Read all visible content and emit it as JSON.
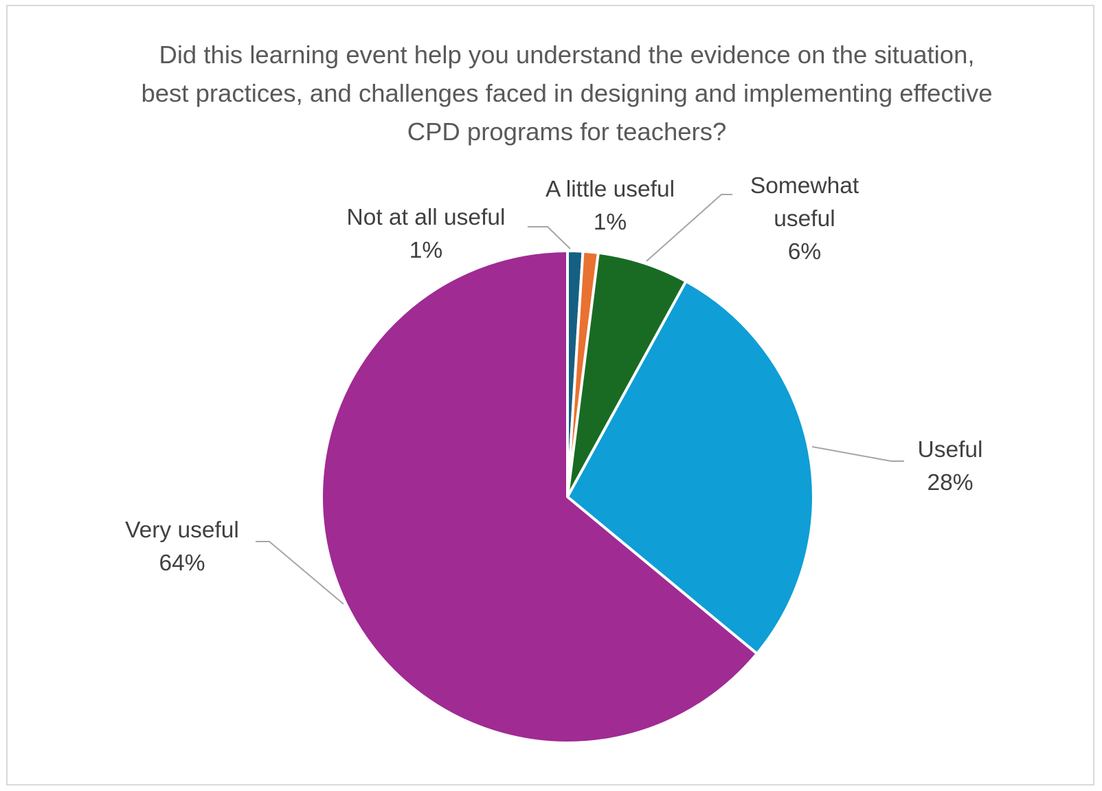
{
  "chart_data": {
    "type": "pie",
    "title": "Did this learning event help you understand the evidence on the situation, best practices, and challenges faced in designing and implementing effective CPD programs for teachers?",
    "start_angle_deg": 0,
    "direction": "clockwise",
    "slices": [
      {
        "label": "Not at all useful",
        "value": 1,
        "display": "1%",
        "color": "#156082"
      },
      {
        "label": "A little useful",
        "value": 1,
        "display": "1%",
        "color": "#E97132"
      },
      {
        "label": "Somewhat useful",
        "value": 6,
        "display": "6%",
        "color": "#196B24"
      },
      {
        "label": "Useful",
        "value": 28,
        "display": "28%",
        "color": "#0F9ED5"
      },
      {
        "label": "Very useful",
        "value": 64,
        "display": "64%",
        "color": "#A02B93"
      }
    ],
    "slice_border_color": "#FFFFFF",
    "label_text_color": "#404040",
    "leader_line_color": "#A6A6A6",
    "legend": "none"
  }
}
